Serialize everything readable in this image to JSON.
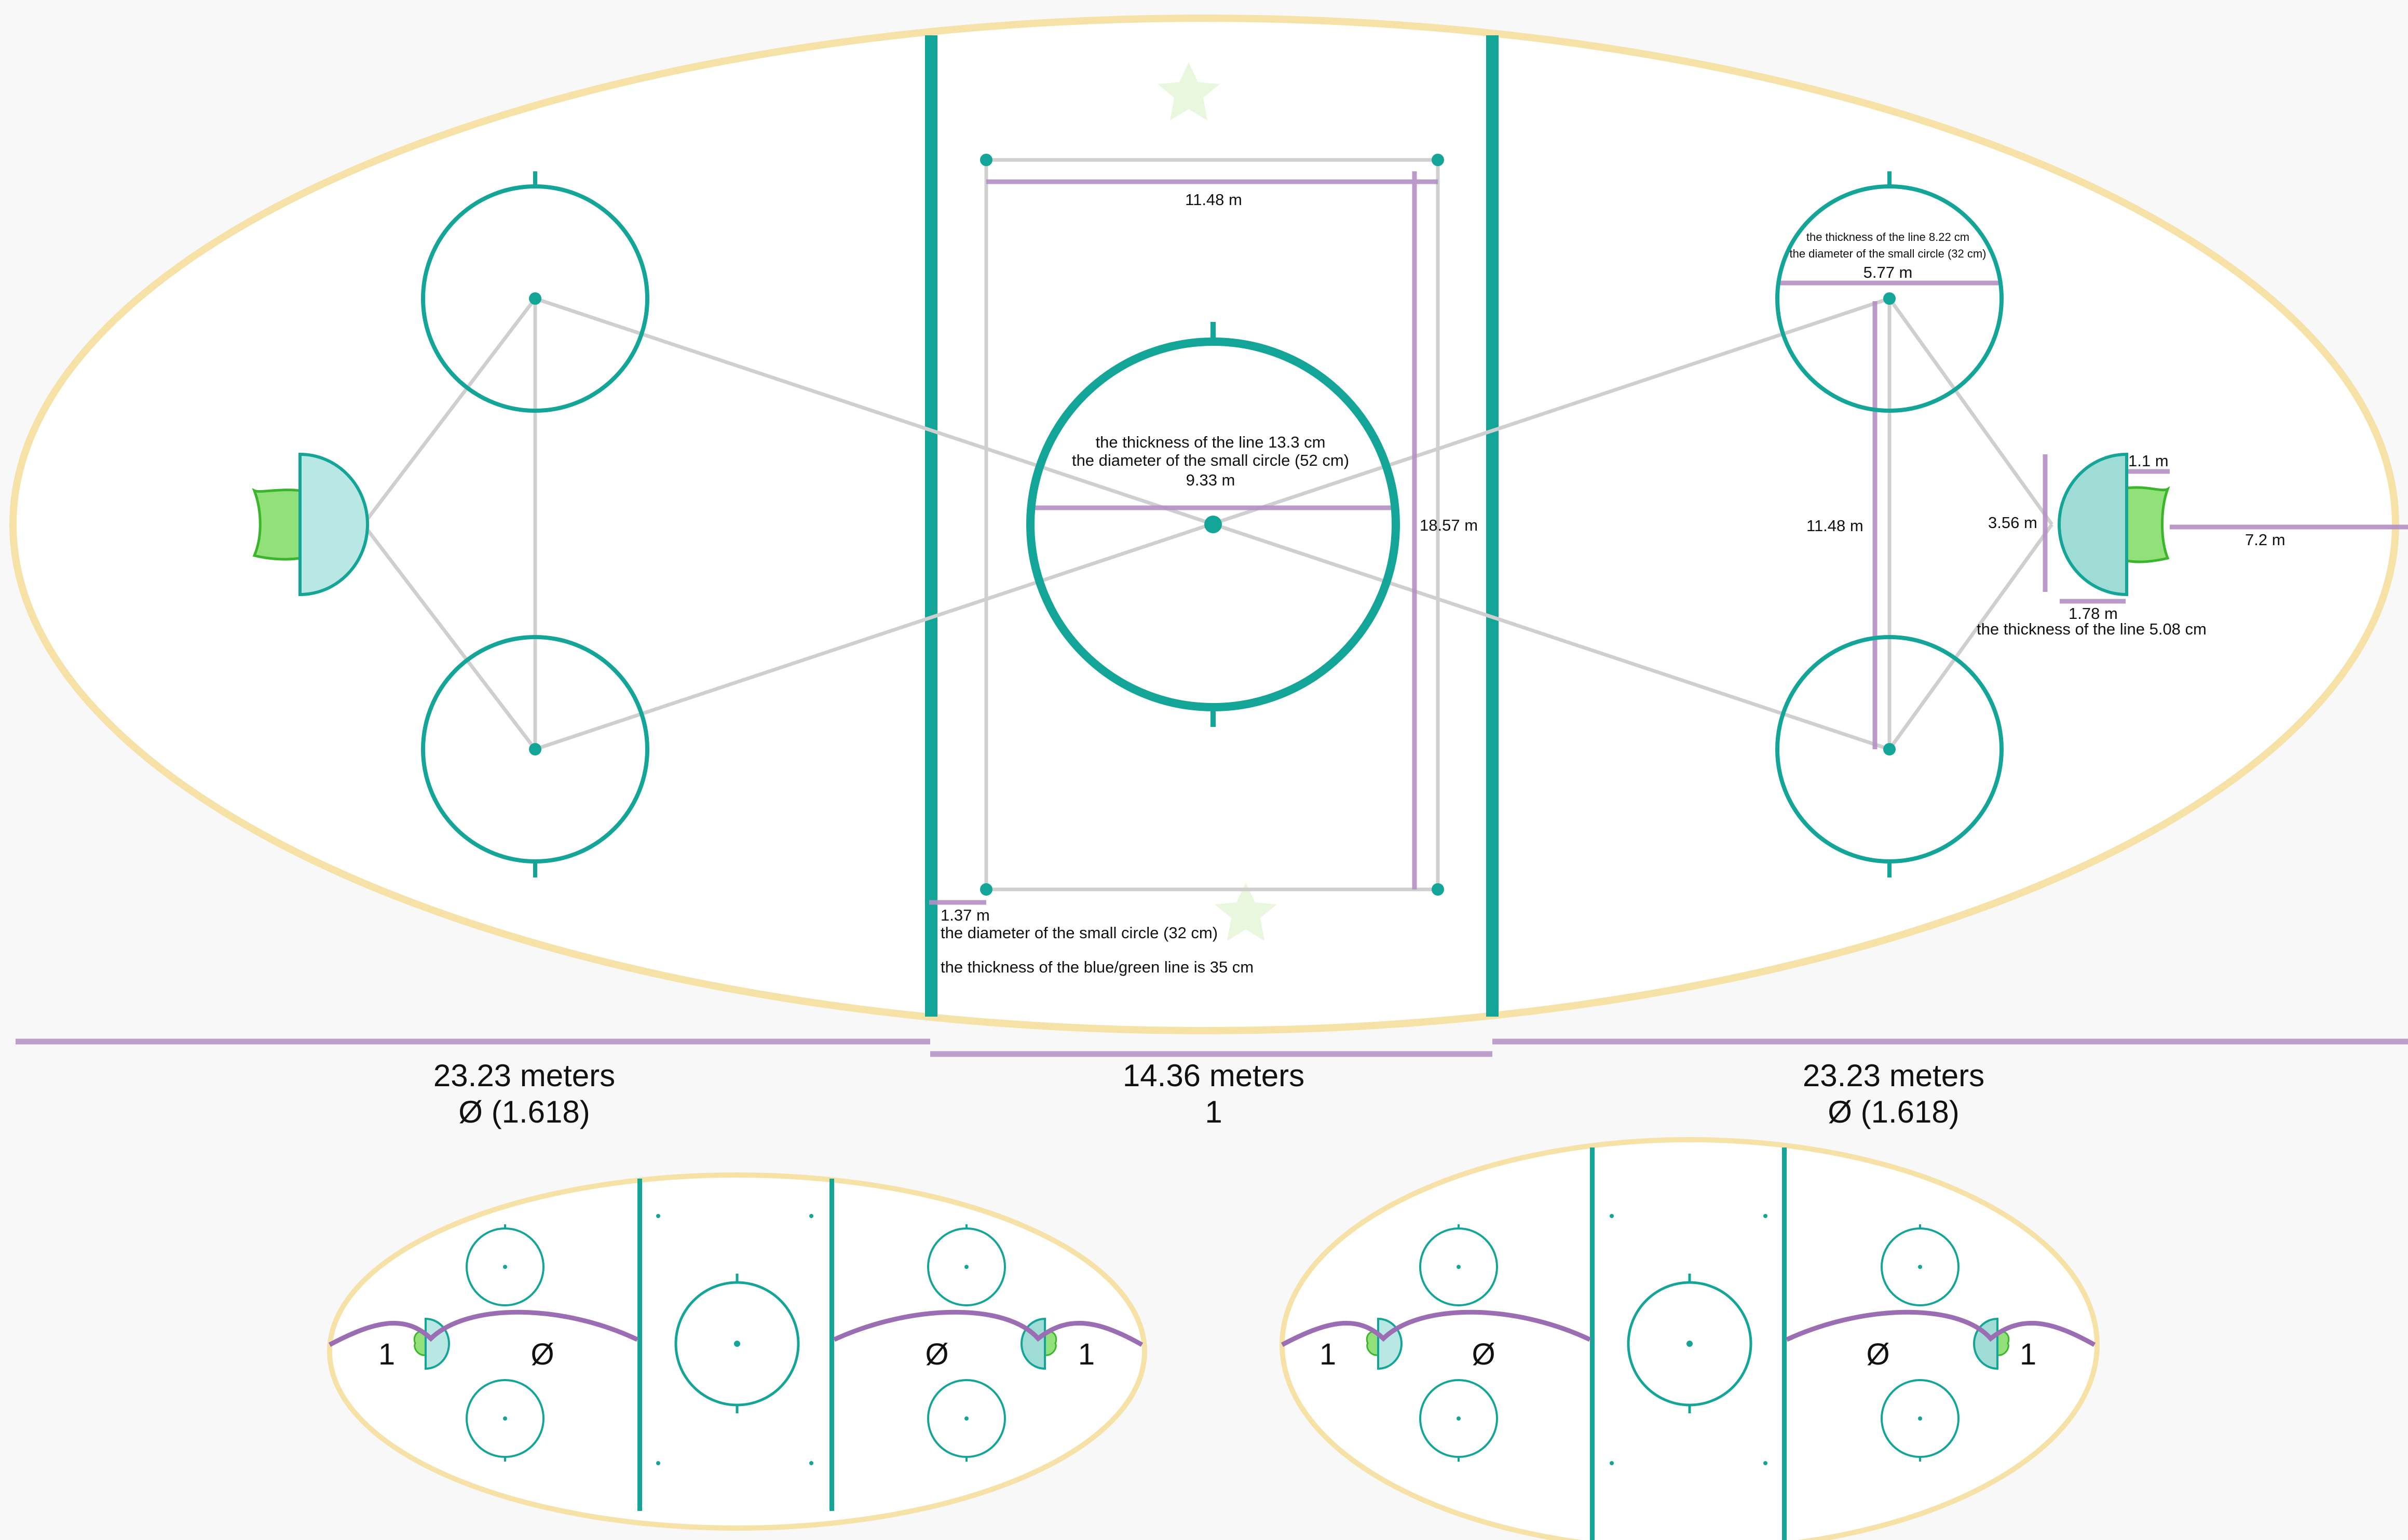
{
  "colors": {
    "rink_border": "#f6e2a6",
    "line_teal": "#13a597",
    "measure_purple": "#b48fc4",
    "connector_gray": "#c9c9c9",
    "crease_teal": "#a4ded9",
    "net_green": "#92e07a",
    "net_green_stroke": "#3bb52b",
    "logo_green": "#eaf7df",
    "bg": "#f8f8f8"
  },
  "main_rink": {
    "center_circle": {
      "line_thickness": "the thickness of the line 13.3 cm",
      "small_circle": "the diameter of the small circle  (52 cm)",
      "diameter": "9.33 m"
    },
    "dots_width": "11.48 m",
    "dots_height": "18.57 m",
    "dot_offset": "1.37 m",
    "small_circle_note": "the diameter of the small circle (32 cm)",
    "blue_line_note": "the thickness of the blue/green line is 35 cm",
    "faceoff": {
      "line_thickness": "the thickness of the line 8.22 cm",
      "small_circle": "the diameter of the small circle (32 cm)",
      "diameter": "5.77 m",
      "spacing": "11.48 m"
    },
    "goal": {
      "crease_width": "3.56 m",
      "net_depth": "1.1 m",
      "crease_radius": "1.78 m",
      "goal_line_dist": "7.2 m",
      "line_thickness": "the thickness of the line 5.08 cm"
    }
  },
  "zones": {
    "left": {
      "length": "23.23 meters",
      "ratio": "Ø (1.618)"
    },
    "center": {
      "length": "14.36 meters",
      "ratio": "1"
    },
    "right": {
      "length": "23.23 meters",
      "ratio": "Ø (1.618)"
    }
  },
  "mini_rinks": {
    "one_label": "1",
    "phi_label": "Ø"
  }
}
